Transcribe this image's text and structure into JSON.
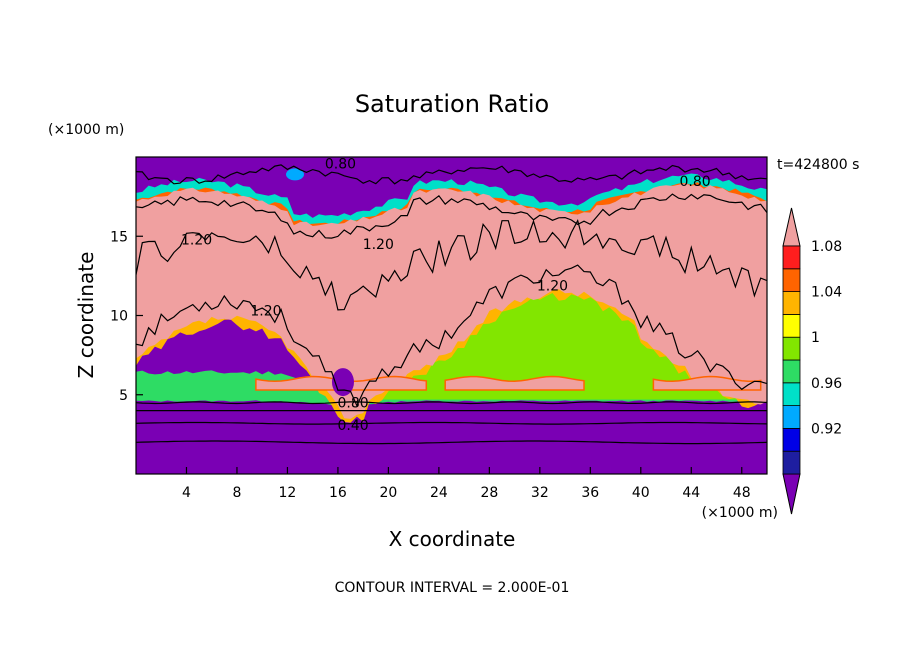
{
  "chart_data": {
    "type": "heatmap",
    "title": "Saturation Ratio",
    "xlabel": "X coordinate",
    "ylabel": "Z coordinate",
    "x_unit": "(×1000 m)",
    "y_unit": "(×1000 m)",
    "xlim": [
      0,
      50
    ],
    "ylim": [
      0,
      20
    ],
    "x_ticks": [
      4,
      8,
      12,
      16,
      20,
      24,
      28,
      32,
      36,
      40,
      44,
      48
    ],
    "y_ticks": [
      5,
      10,
      15
    ],
    "time_label": "t=424800 s",
    "footer": "CONTOUR INTERVAL = 2.000E-01",
    "colorbar": {
      "levels": [
        "0.92",
        "0.96",
        "1",
        "1.04",
        "1.08"
      ],
      "colors": [
        "#7a00b4",
        "#1e1ea0",
        "#0000e6",
        "#00aaff",
        "#00e0c8",
        "#2edc64",
        "#82e600",
        "#ffff00",
        "#ffb400",
        "#ff6400",
        "#ff1e1e",
        "#f0a0a0"
      ]
    },
    "contour_labels": [
      {
        "text": "0.80",
        "x": 16.2,
        "z": 19.6
      },
      {
        "text": "0.80",
        "x": 44.3,
        "z": 18.5
      },
      {
        "text": "1.20",
        "x": 4.8,
        "z": 14.8
      },
      {
        "text": "1.20",
        "x": 19.2,
        "z": 14.5
      },
      {
        "text": "1.20",
        "x": 33.0,
        "z": 11.9
      },
      {
        "text": "1.20",
        "x": 10.3,
        "z": 10.3
      },
      {
        "text": "0.80",
        "x": 17.2,
        "z": 4.5
      },
      {
        "text": "0.40",
        "x": 17.2,
        "z": 3.1
      }
    ]
  }
}
